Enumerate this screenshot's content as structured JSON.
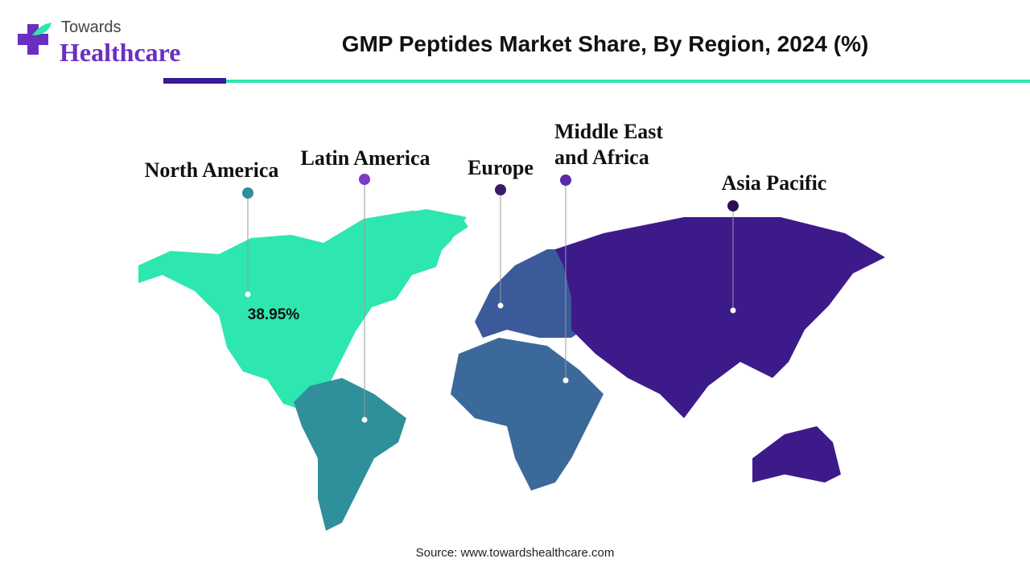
{
  "logo": {
    "top": "Towards",
    "bottom": "Healthcare"
  },
  "header": {
    "title": "GMP Peptides Market Share, By Region, 2024 (%)"
  },
  "regions": [
    {
      "name": [
        "North America"
      ],
      "value_label": "38.95%"
    },
    {
      "name": [
        "Latin America"
      ]
    },
    {
      "name": [
        "Europe"
      ]
    },
    {
      "name": [
        "Middle East",
        "and Africa"
      ]
    },
    {
      "name": [
        "Asia Pacific"
      ]
    }
  ],
  "footer": {
    "source": "Source: www.towardshealthcare.com"
  }
}
